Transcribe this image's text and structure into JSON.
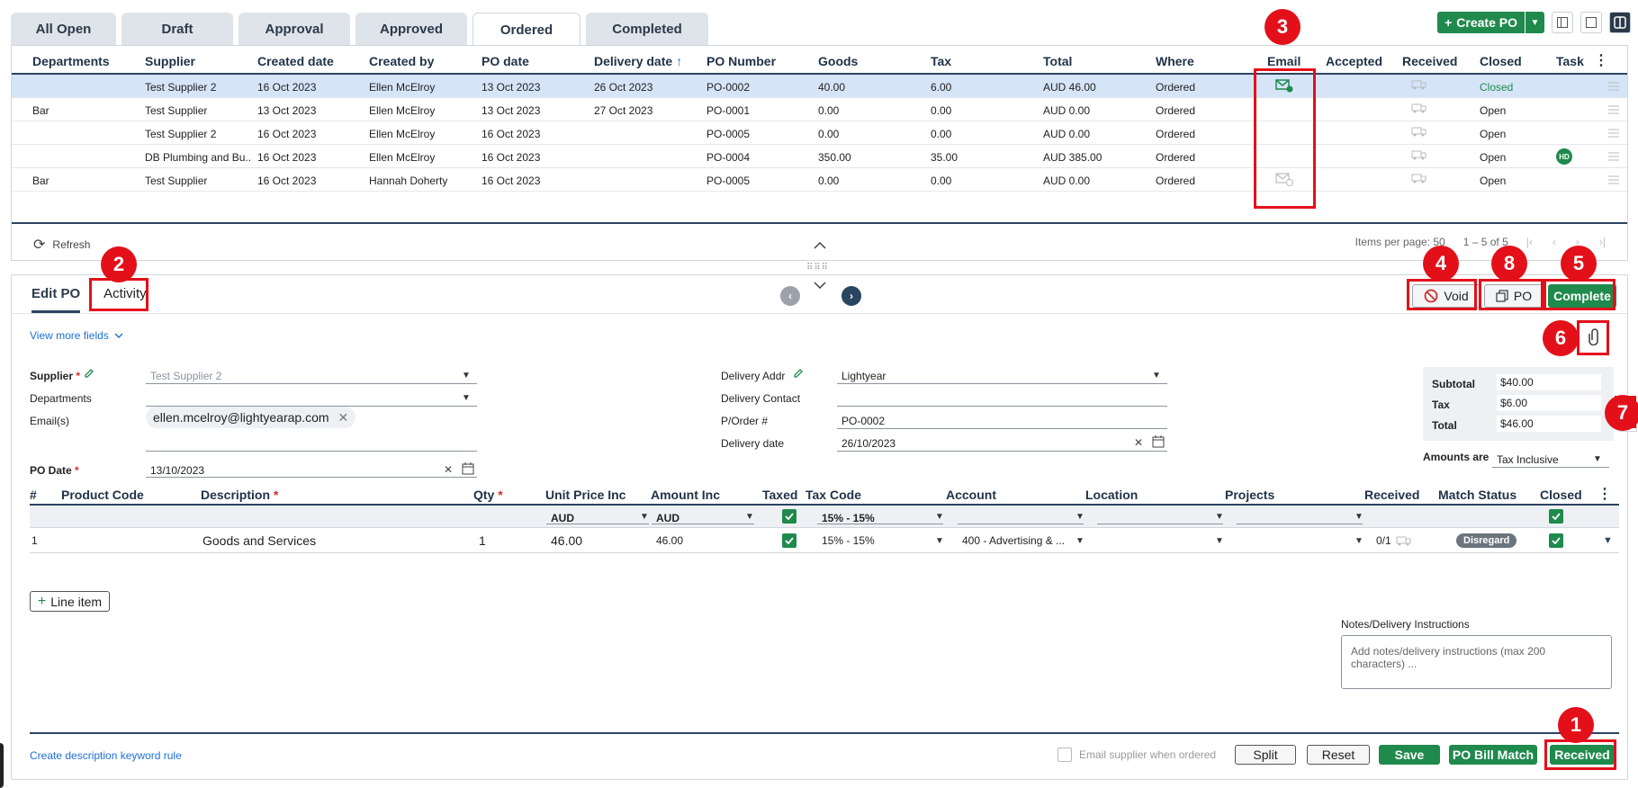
{
  "top_tabs": [
    "All Open",
    "Draft",
    "Approval",
    "Approved",
    "Ordered",
    "Completed"
  ],
  "active_tab": "Ordered",
  "toolbar": {
    "create_po": "Create PO"
  },
  "grid": {
    "headers": [
      "Departments",
      "Supplier",
      "Created date",
      "Created by",
      "PO date",
      "Delivery date",
      "PO Number",
      "Goods",
      "Tax",
      "Total",
      "Where",
      "Email",
      "Accepted",
      "Received",
      "Closed",
      "Task"
    ],
    "rows": [
      {
        "dept": "",
        "supplier": "Test Supplier 2",
        "created": "16 Oct 2023",
        "by": "Ellen McElroy",
        "po_date": "13 Oct 2023",
        "delivery": "26 Oct 2023",
        "po_number": "PO-0002",
        "goods": "40.00",
        "tax": "6.00",
        "total": "AUD 46.00",
        "where": "Ordered",
        "closed": "Closed",
        "task": ""
      },
      {
        "dept": "Bar",
        "supplier": "Test Supplier",
        "created": "13 Oct 2023",
        "by": "Ellen McElroy",
        "po_date": "13 Oct 2023",
        "delivery": "27 Oct 2023",
        "po_number": "PO-0001",
        "goods": "0.00",
        "tax": "0.00",
        "total": "AUD 0.00",
        "where": "Ordered",
        "closed": "Open",
        "task": ""
      },
      {
        "dept": "",
        "supplier": "Test Supplier 2",
        "created": "16 Oct 2023",
        "by": "Ellen McElroy",
        "po_date": "16 Oct 2023",
        "delivery": "",
        "po_number": "PO-0005",
        "goods": "0.00",
        "tax": "0.00",
        "total": "AUD 0.00",
        "where": "Ordered",
        "closed": "Open",
        "task": ""
      },
      {
        "dept": "",
        "supplier": "DB Plumbing and Bu...",
        "created": "16 Oct 2023",
        "by": "Ellen McElroy",
        "po_date": "16 Oct 2023",
        "delivery": "",
        "po_number": "PO-0004",
        "goods": "350.00",
        "tax": "35.00",
        "total": "AUD 385.00",
        "where": "Ordered",
        "closed": "Open",
        "task": "HD"
      },
      {
        "dept": "Bar",
        "supplier": "Test Supplier",
        "created": "16 Oct 2023",
        "by": "Hannah Doherty",
        "po_date": "16 Oct 2023",
        "delivery": "",
        "po_number": "PO-0005",
        "goods": "0.00",
        "tax": "0.00",
        "total": "AUD 0.00",
        "where": "Ordered",
        "closed": "Open",
        "task": ""
      }
    ],
    "refresh": "Refresh",
    "items_per_page": "Items per page: 50",
    "range": "1 – 5 of 5"
  },
  "edit": {
    "tab_edit": "Edit PO",
    "tab_activity": "Activity",
    "void": "Void",
    "po": "PO",
    "complete": "Complete",
    "view_more": "View more fields",
    "supplier_label": "Supplier",
    "supplier_value": "Test Supplier 2",
    "departments_label": "Departments",
    "emails_label": "Email(s)",
    "email_chip": "ellen.mcelroy@lightyearap.com",
    "po_date_label": "PO Date",
    "po_date_value": "13/10/2023",
    "delivery_addr_label": "Delivery Addr",
    "delivery_addr_value": "Lightyear",
    "delivery_contact_label": "Delivery Contact",
    "porder_label": "P/Order #",
    "porder_value": "PO-0002",
    "delivery_date_label": "Delivery date",
    "delivery_date_value": "26/10/2023",
    "subtotal_label": "Subtotal",
    "subtotal_value": "$40.00",
    "tax_label": "Tax",
    "tax_value": "$6.00",
    "total_label": "Total",
    "total_value": "$46.00",
    "amounts_are_label": "Amounts are",
    "amounts_are_value": "Tax Inclusive"
  },
  "lines": {
    "headers": [
      "#",
      "Product Code",
      "Description",
      "Qty",
      "Unit Price Inc",
      "Amount Inc",
      "Taxed",
      "Tax Code",
      "Account",
      "Location",
      "Projects",
      "Received",
      "Match Status",
      "Closed"
    ],
    "sub": {
      "currency1": "AUD",
      "currency2": "AUD",
      "tax_code": "15% - 15%"
    },
    "row": {
      "num": "1",
      "description": "Goods and Services",
      "qty": "1",
      "unit_price": "46.00",
      "amount": "46.00",
      "tax_code": "15% - 15%",
      "account": "400 - Advertising & ...",
      "received": "0/1",
      "match_status": "Disregard"
    },
    "add_line": "Line item",
    "notes_label": "Notes/Delivery Instructions",
    "notes_placeholder": "Add notes/delivery instructions (max 200 characters) ..."
  },
  "footer": {
    "keyword_rule": "Create description keyword rule",
    "email_supplier": "Email supplier when ordered",
    "split": "Split",
    "reset": "Reset",
    "save": "Save",
    "po_bill_match": "PO Bill Match",
    "received": "Received"
  },
  "annotations": [
    "1",
    "2",
    "3",
    "4",
    "5",
    "6",
    "7",
    "8"
  ]
}
